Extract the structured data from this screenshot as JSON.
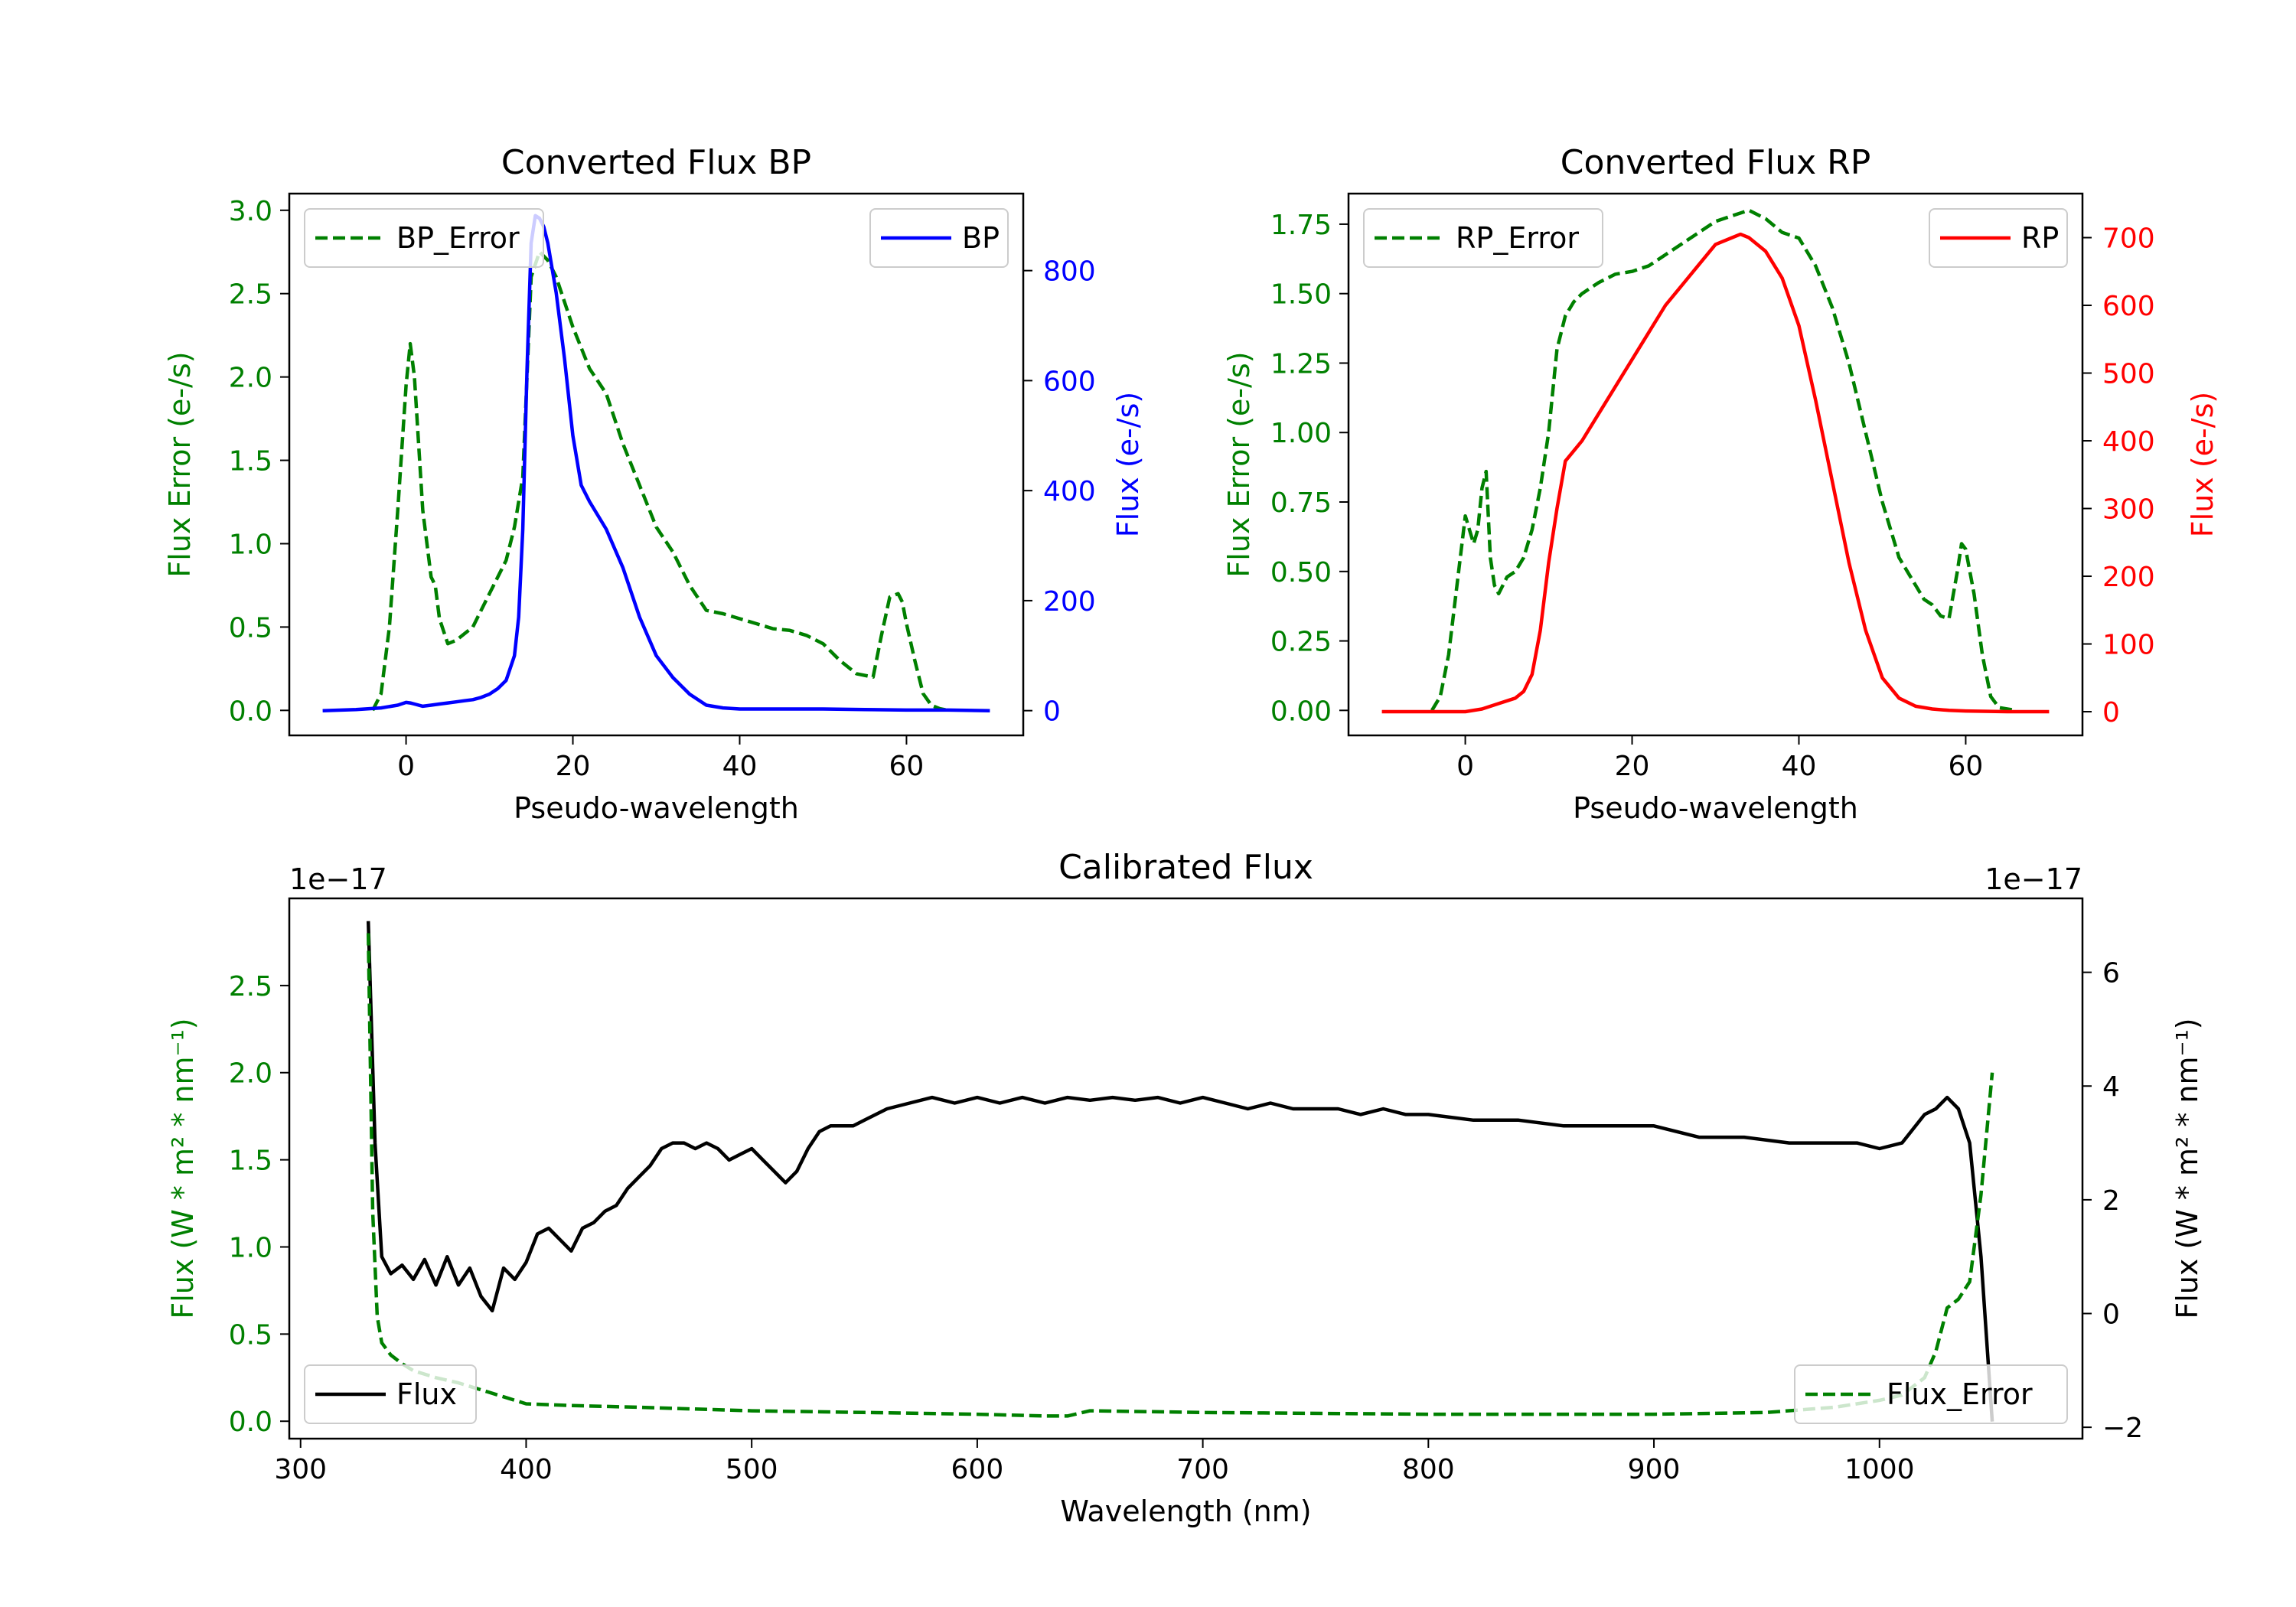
{
  "chart_data": [
    {
      "type": "line",
      "title": "Converted Flux BP",
      "xlabel": "Pseudo-wavelength",
      "ylabel_left": "Flux Error (e-/s)",
      "ylabel_right": "Flux (e-/s)",
      "xlim": [
        -14,
        74
      ],
      "ylim_left": [
        -0.15,
        3.1
      ],
      "ylim_right": [
        -45,
        940
      ],
      "xticks": [
        0,
        20,
        40,
        60
      ],
      "yticks_left": [
        0.0,
        0.5,
        1.0,
        1.5,
        2.0,
        2.5,
        3.0
      ],
      "yticks_right": [
        0,
        200,
        400,
        600,
        800
      ],
      "series": [
        {
          "name": "BP_Error",
          "axis": "left",
          "style": "dashed",
          "color": "#008000",
          "x": [
            -4,
            -3,
            -2,
            -1,
            0,
            0.5,
            1,
            2,
            3,
            3.5,
            4,
            5,
            6,
            8,
            10,
            12,
            13,
            14,
            14.5,
            15,
            16,
            17,
            18,
            20,
            22,
            24,
            26,
            28,
            30,
            32,
            34,
            36,
            38,
            40,
            42,
            44,
            46,
            48,
            50,
            52,
            54,
            56,
            57,
            58,
            59,
            59.5,
            60,
            61,
            62,
            63,
            64,
            65
          ],
          "y": [
            0.0,
            0.1,
            0.5,
            1.2,
            1.95,
            2.2,
            2.0,
            1.2,
            0.8,
            0.75,
            0.55,
            0.4,
            0.42,
            0.5,
            0.7,
            0.9,
            1.1,
            1.4,
            2.0,
            2.6,
            2.75,
            2.7,
            2.6,
            2.3,
            2.05,
            1.9,
            1.6,
            1.35,
            1.1,
            0.95,
            0.75,
            0.6,
            0.58,
            0.55,
            0.52,
            0.49,
            0.48,
            0.45,
            0.4,
            0.3,
            0.22,
            0.2,
            0.45,
            0.68,
            0.7,
            0.65,
            0.52,
            0.3,
            0.1,
            0.03,
            0.01,
            0.0
          ]
        },
        {
          "name": "BP",
          "axis": "right",
          "style": "solid",
          "color": "#0000ff",
          "x": [
            -10,
            -6,
            -3,
            -1,
            0,
            0.5,
            1,
            2,
            3,
            4,
            5,
            6,
            7,
            8,
            9,
            10,
            11,
            12,
            13,
            13.5,
            14,
            14.5,
            15,
            15.5,
            16,
            16.5,
            17,
            18,
            19,
            20,
            21,
            22,
            24,
            26,
            28,
            30,
            32,
            34,
            36,
            38,
            40,
            45,
            50,
            55,
            60,
            65,
            70
          ],
          "y": [
            0,
            2,
            5,
            10,
            15,
            14,
            12,
            8,
            10,
            12,
            14,
            16,
            18,
            20,
            24,
            30,
            40,
            55,
            100,
            170,
            330,
            620,
            850,
            900,
            895,
            880,
            850,
            760,
            640,
            500,
            410,
            380,
            330,
            260,
            170,
            100,
            60,
            30,
            10,
            5,
            3,
            3,
            3,
            2,
            1,
            1,
            0
          ]
        }
      ],
      "legend": [
        {
          "label": "BP_Error",
          "placement": "upper-left"
        },
        {
          "label": "BP",
          "placement": "upper-right"
        }
      ]
    },
    {
      "type": "line",
      "title": "Converted Flux RP",
      "xlabel": "Pseudo-wavelength",
      "ylabel_left": "Flux Error (e-/s)",
      "ylabel_right": "Flux (e-/s)",
      "xlim": [
        -14,
        74
      ],
      "ylim_left": [
        -0.09,
        1.86
      ],
      "ylim_right": [
        -35,
        765
      ],
      "xticks": [
        0,
        20,
        40,
        60
      ],
      "yticks_left": [
        0.0,
        0.25,
        0.5,
        0.75,
        1.0,
        1.25,
        1.5,
        1.75
      ],
      "yticks_right": [
        0,
        100,
        200,
        300,
        400,
        500,
        600,
        700
      ],
      "series": [
        {
          "name": "RP_Error",
          "axis": "left",
          "style": "dashed",
          "color": "#008000",
          "x": [
            -4,
            -3,
            -2,
            -1,
            0,
            1,
            1.5,
            2,
            2.5,
            3,
            3.5,
            4,
            5,
            6,
            7,
            8,
            9,
            10,
            11,
            12,
            13,
            14,
            16,
            18,
            20,
            22,
            24,
            26,
            28,
            30,
            32,
            34,
            36,
            38,
            40,
            42,
            44,
            46,
            48,
            50,
            52,
            54,
            55,
            56,
            57,
            58,
            59,
            59.5,
            60,
            61,
            62,
            63,
            64,
            66
          ],
          "y": [
            0.0,
            0.05,
            0.2,
            0.45,
            0.7,
            0.6,
            0.65,
            0.8,
            0.86,
            0.55,
            0.45,
            0.42,
            0.48,
            0.5,
            0.55,
            0.65,
            0.8,
            1.0,
            1.3,
            1.42,
            1.47,
            1.5,
            1.54,
            1.57,
            1.58,
            1.6,
            1.64,
            1.68,
            1.72,
            1.76,
            1.78,
            1.8,
            1.77,
            1.72,
            1.7,
            1.6,
            1.45,
            1.25,
            1.0,
            0.75,
            0.55,
            0.45,
            0.4,
            0.38,
            0.34,
            0.33,
            0.5,
            0.6,
            0.58,
            0.42,
            0.2,
            0.05,
            0.01,
            0.0
          ]
        },
        {
          "name": "RP",
          "axis": "right",
          "style": "solid",
          "color": "#ff0000",
          "x": [
            -10,
            -5,
            0,
            2,
            4,
            6,
            7,
            8,
            9,
            10,
            11,
            12,
            13,
            14,
            15,
            16,
            18,
            20,
            22,
            24,
            26,
            28,
            30,
            32,
            33,
            34,
            36,
            38,
            40,
            42,
            44,
            46,
            48,
            50,
            52,
            54,
            56,
            58,
            60,
            65,
            70
          ],
          "y": [
            0,
            0,
            0,
            4,
            12,
            20,
            30,
            55,
            120,
            220,
            300,
            370,
            385,
            400,
            420,
            440,
            480,
            520,
            560,
            600,
            630,
            660,
            690,
            700,
            705,
            700,
            680,
            640,
            570,
            460,
            340,
            220,
            120,
            50,
            20,
            8,
            4,
            2,
            1,
            0,
            0
          ]
        }
      ],
      "legend": [
        {
          "label": "RP_Error",
          "placement": "upper-left"
        },
        {
          "label": "RP",
          "placement": "upper-right"
        }
      ]
    },
    {
      "type": "line",
      "title": "Calibrated Flux",
      "xlabel": "Wavelength (nm)",
      "ylabel_left": "Flux (W * m² * nm⁻¹)",
      "ylabel_right": "Flux (W * m² * nm⁻¹)",
      "offset_left": "1e−17",
      "offset_right": "1e−17",
      "xlim": [
        295,
        1090
      ],
      "ylim_left": [
        -0.1,
        3.0
      ],
      "ylim_right": [
        -2.2,
        7.3
      ],
      "xticks": [
        300,
        400,
        500,
        600,
        700,
        800,
        900,
        1000
      ],
      "yticks_left": [
        0.0,
        0.5,
        1.0,
        1.5,
        2.0,
        2.5
      ],
      "yticks_right": [
        -2,
        0,
        2,
        4,
        6
      ],
      "series": [
        {
          "name": "Flux",
          "axis": "right",
          "style": "solid",
          "color": "#000000",
          "x": [
            330,
            333,
            336,
            340,
            345,
            350,
            355,
            360,
            365,
            370,
            375,
            380,
            385,
            390,
            395,
            400,
            405,
            410,
            415,
            420,
            425,
            430,
            435,
            440,
            445,
            450,
            455,
            460,
            465,
            470,
            475,
            480,
            485,
            490,
            495,
            500,
            505,
            510,
            515,
            520,
            525,
            530,
            535,
            540,
            545,
            550,
            560,
            570,
            580,
            590,
            600,
            610,
            620,
            630,
            640,
            650,
            660,
            670,
            680,
            690,
            700,
            710,
            720,
            730,
            740,
            750,
            760,
            770,
            780,
            790,
            800,
            820,
            840,
            860,
            880,
            900,
            920,
            940,
            960,
            980,
            990,
            1000,
            1010,
            1020,
            1025,
            1030,
            1035,
            1040,
            1045,
            1050
          ],
          "y": [
            6.9,
            3.0,
            1.0,
            0.7,
            0.85,
            0.6,
            0.95,
            0.5,
            1.0,
            0.5,
            0.8,
            0.3,
            0.05,
            0.8,
            0.6,
            0.9,
            1.4,
            1.5,
            1.3,
            1.1,
            1.5,
            1.6,
            1.8,
            1.9,
            2.2,
            2.4,
            2.6,
            2.9,
            3.0,
            3.0,
            2.9,
            3.0,
            2.9,
            2.7,
            2.8,
            2.9,
            2.7,
            2.5,
            2.3,
            2.5,
            2.9,
            3.2,
            3.3,
            3.3,
            3.3,
            3.4,
            3.6,
            3.7,
            3.8,
            3.7,
            3.8,
            3.7,
            3.8,
            3.7,
            3.8,
            3.75,
            3.8,
            3.75,
            3.8,
            3.7,
            3.8,
            3.7,
            3.6,
            3.7,
            3.6,
            3.6,
            3.6,
            3.5,
            3.6,
            3.5,
            3.5,
            3.4,
            3.4,
            3.3,
            3.3,
            3.3,
            3.1,
            3.1,
            3.0,
            3.0,
            3.0,
            2.9,
            3.0,
            3.5,
            3.6,
            3.8,
            3.6,
            3.0,
            1.0,
            -1.9
          ]
        },
        {
          "name": "Flux_Error",
          "axis": "left",
          "style": "dashed",
          "color": "#008000",
          "x": [
            330,
            332,
            334,
            336,
            340,
            345,
            350,
            360,
            370,
            380,
            390,
            400,
            420,
            450,
            500,
            550,
            600,
            630,
            640,
            650,
            700,
            800,
            900,
            950,
            980,
            1000,
            1010,
            1020,
            1025,
            1030,
            1035,
            1040,
            1045,
            1050
          ],
          "y": [
            2.8,
            1.2,
            0.6,
            0.45,
            0.38,
            0.33,
            0.29,
            0.25,
            0.22,
            0.18,
            0.14,
            0.1,
            0.09,
            0.08,
            0.06,
            0.05,
            0.04,
            0.03,
            0.03,
            0.06,
            0.05,
            0.04,
            0.04,
            0.05,
            0.08,
            0.12,
            0.15,
            0.25,
            0.4,
            0.65,
            0.7,
            0.8,
            1.3,
            2.0
          ]
        }
      ],
      "legend": [
        {
          "label": "Flux",
          "placement": "lower-left"
        },
        {
          "label": "Flux_Error",
          "placement": "lower-right"
        }
      ]
    }
  ]
}
